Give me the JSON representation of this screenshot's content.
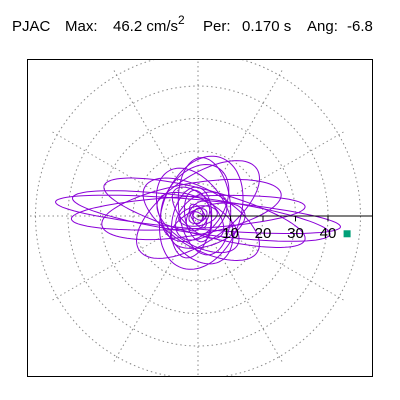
{
  "header": {
    "station": "PJAC",
    "max_label": "Max:",
    "max_value": "46.2",
    "max_unit": "cm/s",
    "max_unit_exp": "2",
    "per_label": "Per:",
    "per_value": "0.170 s",
    "ang_label": "Ang:",
    "ang_value": "-6.8"
  },
  "colors": {
    "trace": "#8a00d8",
    "grid": "#888888",
    "axis": "#000000",
    "peak_marker": "#00a078",
    "frame": "#000000"
  },
  "chart_data": {
    "type": "scatter",
    "description_kind": "polar particle-motion orbit (acceleration)",
    "title": "",
    "radial_ticks": [
      "10",
      "20",
      "30",
      "40"
    ],
    "radial_ring_values": [
      10,
      20,
      30,
      40,
      50
    ],
    "radial_max": 52,
    "radial_spoke_angles_deg": [
      0,
      30,
      60,
      90,
      120,
      150,
      180,
      210,
      240,
      270,
      300,
      330
    ],
    "grid": true,
    "peak": {
      "amplitude": 46.2,
      "angle_deg": -6.8
    },
    "orbit_loops": [
      {
        "a": 44.0,
        "b": 4.5,
        "theta": -5,
        "cx": 0.0,
        "cy": 0.5
      },
      {
        "a": 40.0,
        "b": 5.5,
        "theta": -8,
        "cx": 1.0,
        "cy": 0.0
      },
      {
        "a": 36.0,
        "b": 5.0,
        "theta": 3,
        "cx": -3.0,
        "cy": 1.0
      },
      {
        "a": 32.0,
        "b": 7.0,
        "theta": -15,
        "cx": 2.0,
        "cy": 1.0
      },
      {
        "a": 28.0,
        "b": 8.0,
        "theta": 10,
        "cx": -2.0,
        "cy": 2.0
      },
      {
        "a": 22.0,
        "b": 10.0,
        "theta": 35,
        "cx": 0.0,
        "cy": 2.0
      },
      {
        "a": 20.0,
        "b": 9.0,
        "theta": -30,
        "cx": 1.0,
        "cy": -1.0
      },
      {
        "a": 18.0,
        "b": 12.0,
        "theta": 70,
        "cx": 1.0,
        "cy": 1.0
      },
      {
        "a": 16.0,
        "b": 10.0,
        "theta": 120,
        "cx": -1.0,
        "cy": 0.0
      },
      {
        "a": 15.0,
        "b": 8.0,
        "theta": 95,
        "cx": 2.0,
        "cy": 3.0
      },
      {
        "a": 14.0,
        "b": 7.0,
        "theta": 150,
        "cx": 0.0,
        "cy": -2.0
      },
      {
        "a": 13.0,
        "b": 9.0,
        "theta": 55,
        "cx": -1.0,
        "cy": 4.0
      },
      {
        "a": 12.0,
        "b": 6.0,
        "theta": 20,
        "cx": 3.0,
        "cy": -3.0
      },
      {
        "a": 11.0,
        "b": 6.0,
        "theta": 80,
        "cx": -2.0,
        "cy": -2.0
      },
      {
        "a": 10.0,
        "b": 5.0,
        "theta": 135,
        "cx": 0.0,
        "cy": 1.0
      },
      {
        "a": 9.0,
        "b": 6.0,
        "theta": 40,
        "cx": 1.0,
        "cy": 0.0
      },
      {
        "a": 8.0,
        "b": 4.0,
        "theta": 100,
        "cx": 0.0,
        "cy": 0.0
      },
      {
        "a": 6.0,
        "b": 3.0,
        "theta": 10,
        "cx": 0.0,
        "cy": 0.0
      },
      {
        "a": 5.0,
        "b": 3.0,
        "theta": 60,
        "cx": 0.0,
        "cy": 0.0
      },
      {
        "a": 4.0,
        "b": 2.0,
        "theta": 120,
        "cx": 0.0,
        "cy": 0.0
      },
      {
        "a": 3.0,
        "b": 2.0,
        "theta": 30,
        "cx": 0.0,
        "cy": 0.0
      },
      {
        "a": 2.5,
        "b": 1.5,
        "theta": 80,
        "cx": 0.0,
        "cy": 0.0
      },
      {
        "a": 2.0,
        "b": 1.0,
        "theta": 150,
        "cx": 0.0,
        "cy": 0.0
      }
    ]
  }
}
